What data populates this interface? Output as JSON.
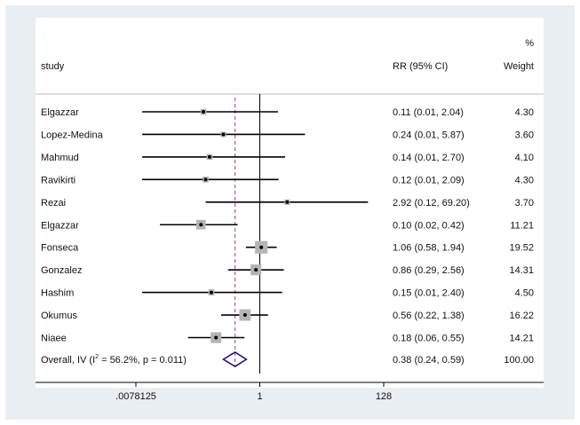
{
  "chart_data": {
    "type": "forest",
    "x_scale": "log2",
    "xlim": [
      0.0078125,
      128
    ],
    "x_ticks": [
      {
        "value": 0.0078125,
        "label": ".0078125"
      },
      {
        "value": 1,
        "label": "1"
      },
      {
        "value": 128,
        "label": "128"
      }
    ],
    "null_line": 1,
    "overall_line": 0.38,
    "headers": {
      "study": "study",
      "effect": "RR (95% CI)",
      "weight_top": "%",
      "weight": "Weight"
    },
    "studies": [
      {
        "name": "Elgazzar",
        "rr": 0.11,
        "lo": 0.01,
        "hi": 2.04,
        "weight": 4.3,
        "ci_text": "0.11 (0.01, 2.04)",
        "weight_text": "4.30"
      },
      {
        "name": "Lopez-Medina",
        "rr": 0.24,
        "lo": 0.01,
        "hi": 5.87,
        "weight": 3.6,
        "ci_text": "0.24 (0.01, 5.87)",
        "weight_text": "3.60"
      },
      {
        "name": "Mahmud",
        "rr": 0.14,
        "lo": 0.01,
        "hi": 2.7,
        "weight": 4.1,
        "ci_text": "0.14 (0.01, 2.70)",
        "weight_text": "4.10"
      },
      {
        "name": "Ravikirti",
        "rr": 0.12,
        "lo": 0.01,
        "hi": 2.09,
        "weight": 4.3,
        "ci_text": "0.12 (0.01, 2.09)",
        "weight_text": "4.30"
      },
      {
        "name": "Rezai",
        "rr": 2.92,
        "lo": 0.12,
        "hi": 69.2,
        "weight": 3.7,
        "ci_text": "2.92 (0.12, 69.20)",
        "weight_text": "3.70"
      },
      {
        "name": "Elgazzar",
        "rr": 0.1,
        "lo": 0.02,
        "hi": 0.42,
        "weight": 11.21,
        "ci_text": "0.10 (0.02, 0.42)",
        "weight_text": "11.21"
      },
      {
        "name": "Fonseca",
        "rr": 1.06,
        "lo": 0.58,
        "hi": 1.94,
        "weight": 19.52,
        "ci_text": "1.06 (0.58, 1.94)",
        "weight_text": "19.52"
      },
      {
        "name": "Gonzalez",
        "rr": 0.86,
        "lo": 0.29,
        "hi": 2.56,
        "weight": 14.31,
        "ci_text": "0.86 (0.29, 2.56)",
        "weight_text": "14.31"
      },
      {
        "name": "Hashim",
        "rr": 0.15,
        "lo": 0.01,
        "hi": 2.4,
        "weight": 4.5,
        "ci_text": "0.15 (0.01, 2.40)",
        "weight_text": "4.50"
      },
      {
        "name": "Okumus",
        "rr": 0.56,
        "lo": 0.22,
        "hi": 1.38,
        "weight": 16.22,
        "ci_text": "0.56 (0.22, 1.38)",
        "weight_text": "16.22"
      },
      {
        "name": "Niaee",
        "rr": 0.18,
        "lo": 0.06,
        "hi": 0.55,
        "weight": 14.21,
        "ci_text": "0.18 (0.06, 0.55)",
        "weight_text": "14.21"
      }
    ],
    "overall": {
      "label_prefix": "Overall, IV (I",
      "label_sup": "2",
      "label_suffix": " = 56.2%, p = 0.011)",
      "rr": 0.38,
      "lo": 0.24,
      "hi": 0.59,
      "ci_text": "0.38 (0.24, 0.59)",
      "weight_text": "100.00"
    },
    "colors": {
      "background": "#e9eef3",
      "panel": "#ffffff",
      "line": "#000000",
      "weight_box": "#b4b4b4",
      "overall_line": "#a0405a",
      "diamond": "#1a1a80"
    }
  }
}
